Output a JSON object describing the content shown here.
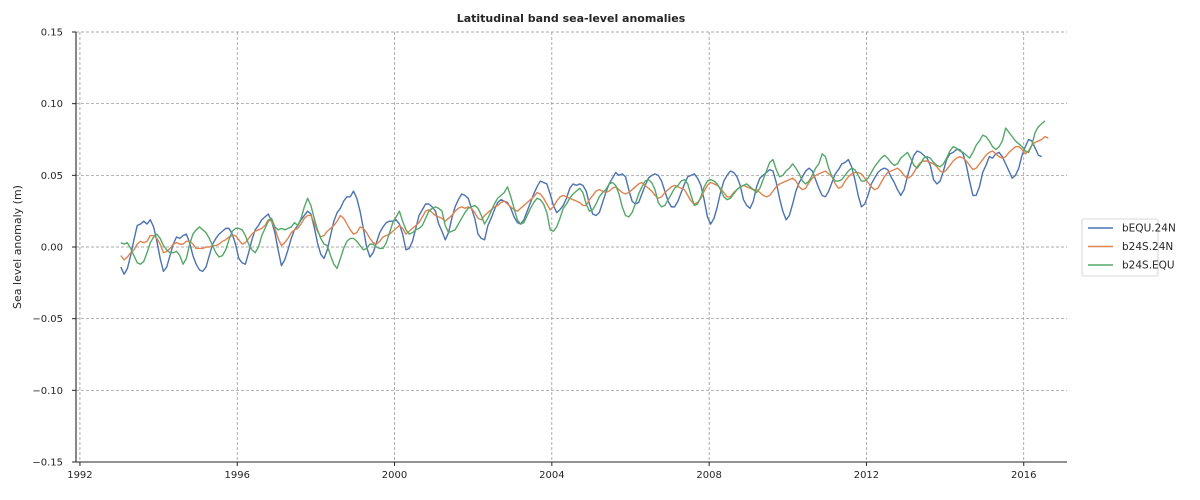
{
  "chart_data": {
    "type": "line",
    "title": "Latitudinal band sea-level anomalies",
    "xlabel": "",
    "ylabel": "Sea level anomaly (m)",
    "xlim": [
      1991.9,
      2017.1
    ],
    "ylim": [
      -0.15,
      0.15
    ],
    "xticks": [
      1992,
      1996,
      2000,
      2004,
      2008,
      2012,
      2016
    ],
    "yticks": [
      -0.15,
      -0.1,
      -0.05,
      0.0,
      0.05,
      0.1,
      0.15
    ],
    "ytick_labels": [
      "−0.15",
      "−0.10",
      "−0.05",
      "0.00",
      "0.05",
      "0.10",
      "0.15"
    ],
    "grid": true,
    "legend_position": "right, outside plot",
    "x_start": 1993.04,
    "x_step": 0.0833333,
    "series": [
      {
        "name": "bEQU.24N",
        "color": "#4c72b0",
        "values": [
          -0.014,
          -0.019,
          -0.015,
          -0.006,
          0.005,
          0.015,
          0.016,
          0.018,
          0.016,
          0.019,
          0.014,
          0.004,
          -0.008,
          -0.017,
          -0.014,
          -0.006,
          0.002,
          0.007,
          0.006,
          0.008,
          0.009,
          0.003,
          -0.006,
          -0.012,
          -0.016,
          -0.017,
          -0.014,
          -0.006,
          0.002,
          0.006,
          0.009,
          0.011,
          0.013,
          0.013,
          0.009,
          0.002,
          -0.008,
          -0.011,
          -0.012,
          -0.004,
          0.005,
          0.012,
          0.015,
          0.019,
          0.021,
          0.023,
          0.018,
          0.01,
          -0.002,
          -0.013,
          -0.009,
          -0.002,
          0.006,
          0.012,
          0.015,
          0.019,
          0.022,
          0.025,
          0.023,
          0.014,
          0.003,
          -0.005,
          -0.008,
          -0.002,
          0.008,
          0.018,
          0.024,
          0.027,
          0.032,
          0.035,
          0.035,
          0.039,
          0.034,
          0.025,
          0.013,
          0.0,
          -0.007,
          -0.004,
          0.003,
          0.01,
          0.014,
          0.017,
          0.018,
          0.018,
          0.019,
          0.016,
          0.009,
          -0.002,
          -0.001,
          0.004,
          0.013,
          0.022,
          0.026,
          0.03,
          0.03,
          0.028,
          0.025,
          0.016,
          0.011,
          0.005,
          0.01,
          0.02,
          0.028,
          0.033,
          0.037,
          0.036,
          0.034,
          0.027,
          0.02,
          0.009,
          0.006,
          0.005,
          0.015,
          0.02,
          0.026,
          0.031,
          0.033,
          0.032,
          0.031,
          0.027,
          0.021,
          0.017,
          0.016,
          0.019,
          0.025,
          0.031,
          0.037,
          0.042,
          0.046,
          0.045,
          0.044,
          0.037,
          0.029,
          0.024,
          0.026,
          0.029,
          0.034,
          0.041,
          0.044,
          0.043,
          0.044,
          0.043,
          0.039,
          0.03,
          0.023,
          0.022,
          0.024,
          0.031,
          0.038,
          0.044,
          0.048,
          0.052,
          0.05,
          0.051,
          0.049,
          0.04,
          0.032,
          0.03,
          0.031,
          0.037,
          0.043,
          0.048,
          0.05,
          0.051,
          0.05,
          0.046,
          0.039,
          0.032,
          0.028,
          0.028,
          0.032,
          0.038,
          0.044,
          0.049,
          0.05,
          0.051,
          0.048,
          0.043,
          0.033,
          0.021,
          0.016,
          0.02,
          0.028,
          0.038,
          0.046,
          0.05,
          0.053,
          0.052,
          0.049,
          0.043,
          0.033,
          0.029,
          0.027,
          0.032,
          0.042,
          0.048,
          0.05,
          0.052,
          0.054,
          0.053,
          0.045,
          0.034,
          0.025,
          0.019,
          0.022,
          0.03,
          0.039,
          0.045,
          0.049,
          0.053,
          0.055,
          0.053,
          0.047,
          0.041,
          0.036,
          0.035,
          0.039,
          0.045,
          0.051,
          0.054,
          0.058,
          0.059,
          0.061,
          0.056,
          0.047,
          0.036,
          0.028,
          0.03,
          0.036,
          0.044,
          0.048,
          0.052,
          0.054,
          0.055,
          0.054,
          0.049,
          0.045,
          0.04,
          0.036,
          0.04,
          0.049,
          0.057,
          0.064,
          0.067,
          0.066,
          0.064,
          0.062,
          0.057,
          0.047,
          0.044,
          0.046,
          0.053,
          0.061,
          0.065,
          0.066,
          0.068,
          0.068,
          0.065,
          0.057,
          0.046,
          0.036,
          0.036,
          0.042,
          0.052,
          0.057,
          0.063,
          0.062,
          0.065,
          0.066,
          0.063,
          0.058,
          0.053,
          0.048,
          0.05,
          0.055,
          0.064,
          0.07,
          0.075,
          0.074,
          0.069,
          0.064,
          0.063
        ]
      },
      {
        "name": "b24S.24N",
        "color": "#dd8452",
        "values": [
          -0.006,
          -0.009,
          -0.007,
          -0.004,
          -0.002,
          0.002,
          0.004,
          0.003,
          0.004,
          0.008,
          0.008,
          0.006,
          0.002,
          -0.004,
          -0.003,
          -0.001,
          0.002,
          0.003,
          0.002,
          0.002,
          0.004,
          0.004,
          0.002,
          -0.001,
          -0.001,
          -0.001,
          0.0,
          0.0,
          0.001,
          0.001,
          0.002,
          0.004,
          0.005,
          0.007,
          0.008,
          0.008,
          0.005,
          0.002,
          0.003,
          0.006,
          0.009,
          0.011,
          0.012,
          0.013,
          0.015,
          0.019,
          0.018,
          0.013,
          0.006,
          0.001,
          0.003,
          0.006,
          0.01,
          0.012,
          0.013,
          0.016,
          0.02,
          0.022,
          0.022,
          0.017,
          0.011,
          0.007,
          0.008,
          0.011,
          0.013,
          0.015,
          0.018,
          0.022,
          0.02,
          0.016,
          0.012,
          0.009,
          0.01,
          0.014,
          0.013,
          0.01,
          0.006,
          0.003,
          0.002,
          0.004,
          0.007,
          0.008,
          0.009,
          0.011,
          0.013,
          0.015,
          0.013,
          0.009,
          0.011,
          0.013,
          0.015,
          0.017,
          0.021,
          0.025,
          0.026,
          0.024,
          0.022,
          0.021,
          0.02,
          0.018,
          0.02,
          0.022,
          0.025,
          0.027,
          0.028,
          0.027,
          0.028,
          0.027,
          0.024,
          0.02,
          0.019,
          0.022,
          0.024,
          0.026,
          0.028,
          0.029,
          0.031,
          0.032,
          0.03,
          0.028,
          0.026,
          0.025,
          0.027,
          0.029,
          0.031,
          0.033,
          0.035,
          0.038,
          0.037,
          0.034,
          0.03,
          0.026,
          0.028,
          0.032,
          0.035,
          0.036,
          0.035,
          0.034,
          0.033,
          0.032,
          0.031,
          0.029,
          0.029,
          0.033,
          0.036,
          0.039,
          0.04,
          0.039,
          0.038,
          0.039,
          0.041,
          0.042,
          0.04,
          0.038,
          0.037,
          0.038,
          0.04,
          0.042,
          0.044,
          0.045,
          0.043,
          0.041,
          0.039,
          0.036,
          0.034,
          0.035,
          0.038,
          0.04,
          0.042,
          0.043,
          0.042,
          0.041,
          0.04,
          0.036,
          0.032,
          0.03,
          0.031,
          0.034,
          0.039,
          0.043,
          0.045,
          0.044,
          0.043,
          0.041,
          0.038,
          0.035,
          0.035,
          0.038,
          0.04,
          0.042,
          0.043,
          0.042,
          0.041,
          0.04,
          0.04,
          0.038,
          0.036,
          0.035,
          0.036,
          0.039,
          0.042,
          0.044,
          0.045,
          0.046,
          0.047,
          0.048,
          0.046,
          0.042,
          0.04,
          0.041,
          0.045,
          0.048,
          0.05,
          0.051,
          0.052,
          0.053,
          0.051,
          0.049,
          0.044,
          0.041,
          0.042,
          0.046,
          0.049,
          0.051,
          0.052,
          0.052,
          0.051,
          0.048,
          0.045,
          0.042,
          0.04,
          0.041,
          0.045,
          0.049,
          0.052,
          0.053,
          0.054,
          0.055,
          0.053,
          0.05,
          0.048,
          0.049,
          0.052,
          0.056,
          0.059,
          0.06,
          0.06,
          0.059,
          0.058,
          0.056,
          0.053,
          0.052,
          0.054,
          0.057,
          0.06,
          0.062,
          0.063,
          0.062,
          0.06,
          0.057,
          0.054,
          0.055,
          0.058,
          0.061,
          0.064,
          0.066,
          0.067,
          0.065,
          0.063,
          0.062,
          0.063,
          0.066,
          0.068,
          0.07,
          0.07,
          0.068,
          0.065,
          0.067,
          0.071,
          0.073,
          0.074,
          0.075,
          0.077,
          0.076
        ]
      },
      {
        "name": "b24S.EQU",
        "color": "#55a868",
        "values": [
          0.003,
          0.002,
          0.003,
          -0.001,
          -0.006,
          -0.011,
          -0.012,
          -0.01,
          -0.004,
          0.003,
          0.007,
          0.009,
          0.006,
          0.001,
          -0.002,
          -0.004,
          -0.004,
          -0.003,
          -0.006,
          -0.012,
          -0.008,
          0.002,
          0.009,
          0.012,
          0.014,
          0.012,
          0.01,
          0.006,
          0.001,
          -0.004,
          -0.007,
          -0.006,
          -0.002,
          0.005,
          0.011,
          0.013,
          0.013,
          0.012,
          0.008,
          0.002,
          -0.002,
          -0.004,
          0.0,
          0.008,
          0.013,
          0.018,
          0.02,
          0.014,
          0.012,
          0.013,
          0.012,
          0.013,
          0.014,
          0.017,
          0.015,
          0.02,
          0.028,
          0.034,
          0.029,
          0.02,
          0.012,
          0.006,
          0.002,
          0.001,
          -0.006,
          -0.012,
          -0.015,
          -0.008,
          -0.001,
          0.004,
          0.006,
          0.006,
          0.004,
          0.001,
          -0.002,
          -0.001,
          0.002,
          0.002,
          0.0,
          -0.001,
          -0.001,
          0.003,
          0.01,
          0.017,
          0.021,
          0.025,
          0.018,
          0.012,
          0.009,
          0.01,
          0.012,
          0.013,
          0.015,
          0.02,
          0.025,
          0.027,
          0.028,
          0.027,
          0.025,
          0.015,
          0.01,
          0.011,
          0.012,
          0.016,
          0.02,
          0.024,
          0.027,
          0.028,
          0.029,
          0.027,
          0.022,
          0.016,
          0.02,
          0.025,
          0.03,
          0.034,
          0.036,
          0.038,
          0.042,
          0.035,
          0.027,
          0.019,
          0.016,
          0.017,
          0.022,
          0.027,
          0.031,
          0.034,
          0.033,
          0.03,
          0.024,
          0.012,
          0.011,
          0.014,
          0.02,
          0.027,
          0.03,
          0.034,
          0.037,
          0.039,
          0.041,
          0.038,
          0.03,
          0.025,
          0.026,
          0.03,
          0.035,
          0.038,
          0.04,
          0.044,
          0.045,
          0.043,
          0.037,
          0.028,
          0.022,
          0.021,
          0.024,
          0.03,
          0.037,
          0.042,
          0.046,
          0.047,
          0.045,
          0.04,
          0.031,
          0.028,
          0.029,
          0.033,
          0.037,
          0.041,
          0.043,
          0.046,
          0.047,
          0.044,
          0.036,
          0.029,
          0.03,
          0.035,
          0.042,
          0.046,
          0.047,
          0.046,
          0.044,
          0.04,
          0.035,
          0.033,
          0.034,
          0.037,
          0.04,
          0.042,
          0.043,
          0.044,
          0.042,
          0.04,
          0.038,
          0.041,
          0.047,
          0.053,
          0.059,
          0.061,
          0.054,
          0.049,
          0.05,
          0.053,
          0.055,
          0.058,
          0.055,
          0.051,
          0.046,
          0.044,
          0.046,
          0.05,
          0.055,
          0.058,
          0.065,
          0.063,
          0.055,
          0.049,
          0.046,
          0.046,
          0.047,
          0.05,
          0.053,
          0.055,
          0.054,
          0.05,
          0.046,
          0.046,
          0.048,
          0.052,
          0.056,
          0.059,
          0.062,
          0.064,
          0.062,
          0.059,
          0.057,
          0.058,
          0.062,
          0.064,
          0.066,
          0.062,
          0.057,
          0.055,
          0.058,
          0.062,
          0.063,
          0.062,
          0.059,
          0.057,
          0.056,
          0.058,
          0.062,
          0.067,
          0.07,
          0.069,
          0.067,
          0.066,
          0.064,
          0.062,
          0.066,
          0.071,
          0.074,
          0.078,
          0.077,
          0.074,
          0.07,
          0.068,
          0.07,
          0.074,
          0.083,
          0.08,
          0.077,
          0.074,
          0.072,
          0.07,
          0.067,
          0.066,
          0.071,
          0.08,
          0.084,
          0.086,
          0.088
        ]
      }
    ]
  }
}
